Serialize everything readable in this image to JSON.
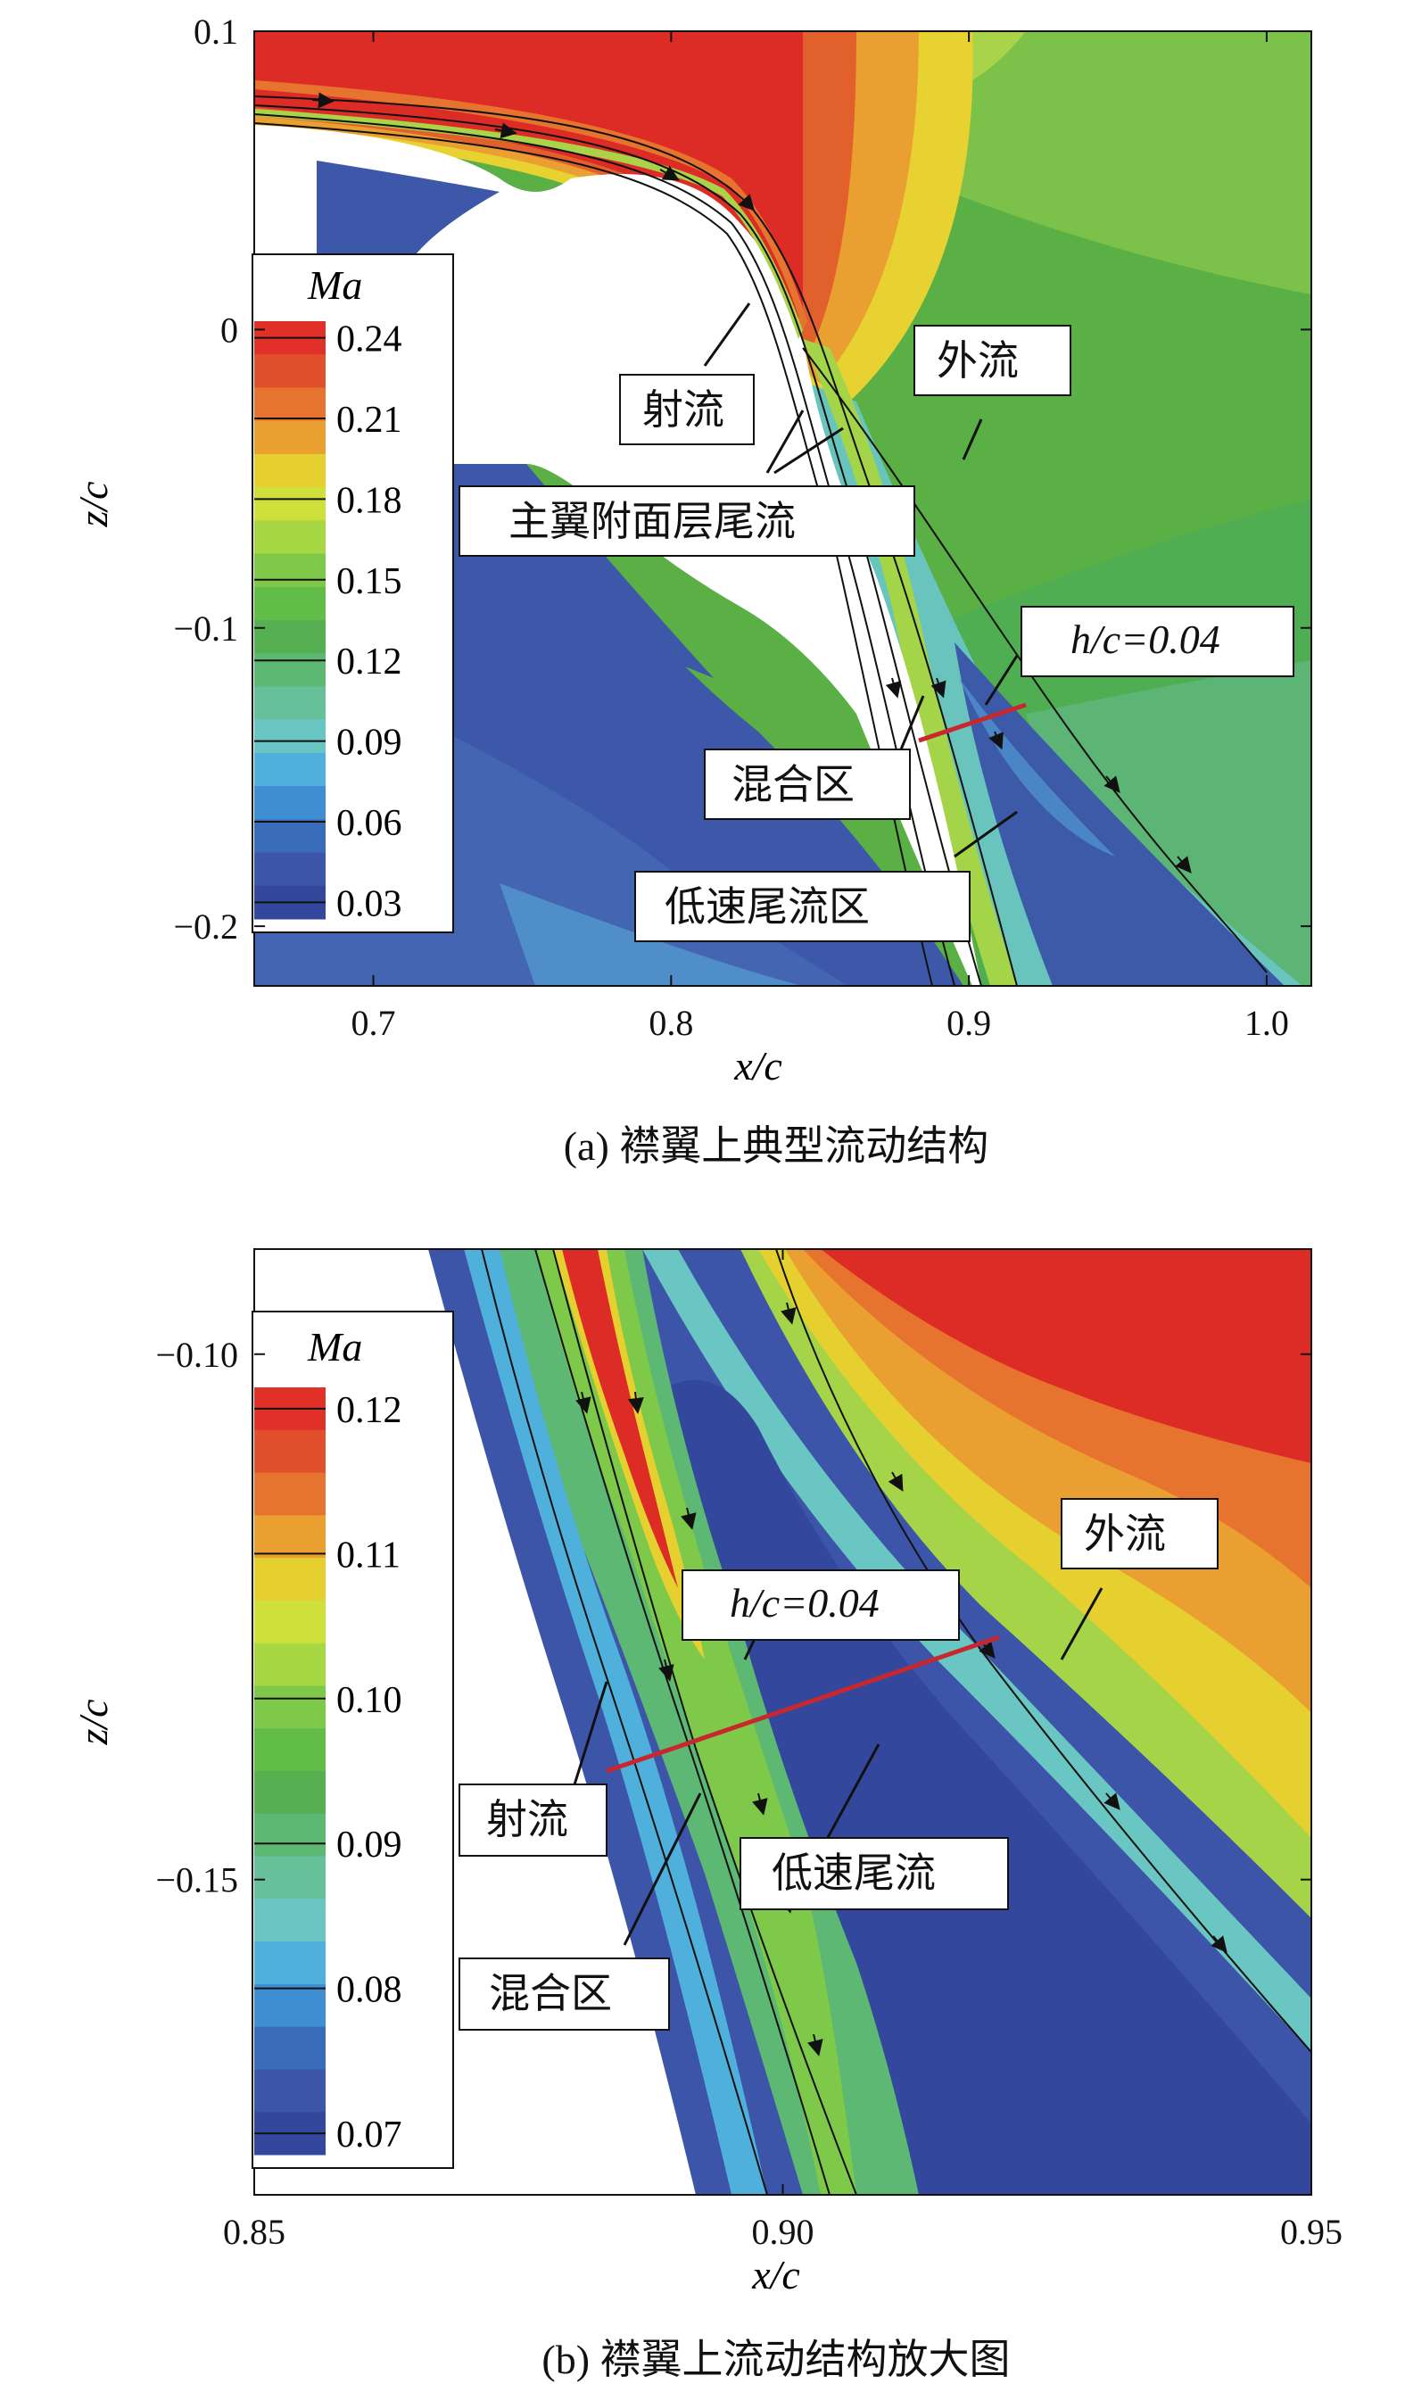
{
  "chart_data": [
    {
      "type": "contour",
      "caption": "(a) 襟翼上典型流动结构",
      "xlabel": "x/c",
      "ylabel": "z/c",
      "xlim": [
        0.66,
        1.015
      ],
      "ylim": [
        -0.22,
        0.1
      ],
      "xticks": [
        {
          "v": 0.7,
          "label": "0.7"
        },
        {
          "v": 0.8,
          "label": "0.8"
        },
        {
          "v": 0.9,
          "label": "0.9"
        },
        {
          "v": 1.0,
          "label": "1.0"
        }
      ],
      "yticks": [
        {
          "v": 0.1,
          "label": "0.1"
        },
        {
          "v": 0.0,
          "label": "0"
        },
        {
          "v": -0.1,
          "label": "−0.1"
        },
        {
          "v": -0.2,
          "label": "−0.2"
        }
      ],
      "legend": {
        "title": "Ma",
        "levels": [
          "0.24",
          "0.21",
          "0.18",
          "0.15",
          "0.12",
          "0.09",
          "0.06",
          "0.03"
        ],
        "colors": [
          "#e03028",
          "#e24f2c",
          "#e7742e",
          "#eaa030",
          "#e5d030",
          "#cfe03a",
          "#a7d844",
          "#7ec94a",
          "#62bc48",
          "#56b052",
          "#5cb872",
          "#66c09a",
          "#6ac6c2",
          "#4fb0dc",
          "#3f8ed2",
          "#3a6cbc",
          "#3d55a8",
          "#33489c"
        ]
      },
      "annotations": [
        "射流",
        "主翼附面层尾流",
        "外流",
        "h/c=0.04",
        "混合区",
        "低速尾流区"
      ]
    },
    {
      "type": "contour",
      "caption": "(b) 襟翼上流动结构放大图",
      "xlabel": "x/c",
      "ylabel": "z/c",
      "xlim": [
        0.85,
        0.95
      ],
      "ylim": [
        -0.18,
        -0.09
      ],
      "xticks": [
        {
          "v": 0.85,
          "label": "0.85"
        },
        {
          "v": 0.9,
          "label": "0.90"
        },
        {
          "v": 0.95,
          "label": "0.95"
        }
      ],
      "yticks": [
        {
          "v": -0.1,
          "label": "−0.10"
        },
        {
          "v": -0.15,
          "label": "−0.15"
        }
      ],
      "legend": {
        "title": "Ma",
        "levels": [
          "0.12",
          "0.11",
          "0.10",
          "0.09",
          "0.08",
          "0.07"
        ],
        "colors": [
          "#e03028",
          "#e24f2c",
          "#e7742e",
          "#eaa030",
          "#e5d030",
          "#cfe03a",
          "#a7d844",
          "#7ec94a",
          "#62bc48",
          "#56b052",
          "#5cb872",
          "#66c09a",
          "#6ac6c2",
          "#4fb0dc",
          "#3f8ed2",
          "#3a6cbc",
          "#3d55a8",
          "#33489c"
        ]
      },
      "annotations": [
        "外流",
        "h/c=0.04",
        "射流",
        "低速尾流",
        "混合区"
      ]
    }
  ]
}
